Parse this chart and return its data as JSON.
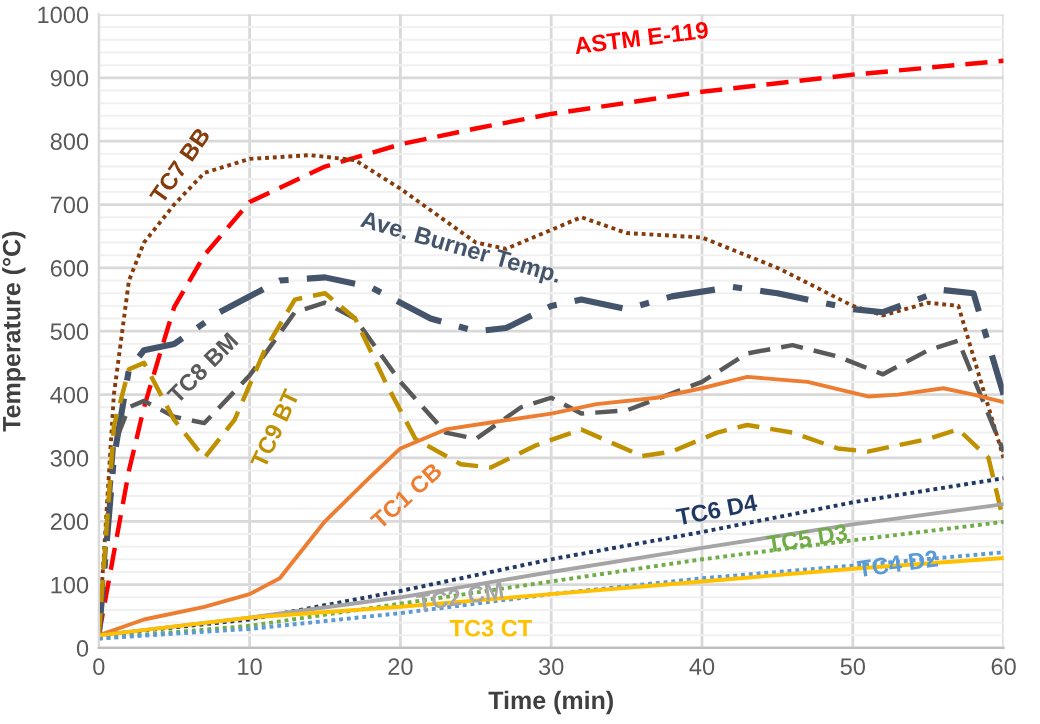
{
  "chart_data": {
    "type": "line",
    "xlabel": "Time (min)",
    "ylabel": "Temperature (°C)",
    "xlim": [
      0,
      60
    ],
    "ylim": [
      0,
      1000
    ],
    "xticks": [
      0,
      10,
      20,
      30,
      40,
      50,
      60
    ],
    "yticks": [
      0,
      100,
      200,
      300,
      400,
      500,
      600,
      700,
      800,
      900,
      1000
    ],
    "grid": true,
    "legend": false,
    "marker": "none",
    "series": [
      {
        "name": "ASTM E-119",
        "color": "#ff0000",
        "line_style": "dashed",
        "x": [
          0,
          1,
          2,
          3,
          4,
          5,
          7,
          10,
          15,
          20,
          25,
          30,
          40,
          50,
          60
        ],
        "values": [
          20,
          150,
          280,
          380,
          460,
          538,
          620,
          704,
          760,
          795,
          820,
          843,
          878,
          905,
          927
        ]
      },
      {
        "name": "TC7 BB",
        "color": "#843c0c",
        "line_style": "dotted",
        "x": [
          0,
          1,
          2,
          3,
          5,
          7,
          10,
          14,
          17,
          20,
          25,
          27,
          30,
          32,
          35,
          40,
          45,
          50,
          52,
          55,
          57,
          60
        ],
        "values": [
          20,
          400,
          580,
          640,
          700,
          750,
          772,
          778,
          770,
          725,
          640,
          630,
          660,
          680,
          655,
          648,
          600,
          540,
          525,
          545,
          540,
          300
        ]
      },
      {
        "name": "Ave. Burner Temp.",
        "color": "#44546a",
        "line_style": "dashdot",
        "x": [
          0,
          1,
          2,
          3,
          5,
          8,
          12,
          15,
          18,
          22,
          25,
          27,
          30,
          32,
          35,
          38,
          42,
          45,
          50,
          52,
          56,
          58,
          60
        ],
        "values": [
          20,
          300,
          440,
          470,
          480,
          530,
          580,
          585,
          570,
          520,
          500,
          505,
          540,
          550,
          535,
          555,
          570,
          560,
          535,
          530,
          565,
          560,
          400
        ]
      },
      {
        "name": "TC8 BM",
        "color": "#595959",
        "line_style": "dashed",
        "x": [
          0,
          1,
          2,
          3,
          5,
          7,
          10,
          13,
          15,
          17,
          20,
          23,
          25,
          28,
          30,
          32,
          35,
          40,
          43,
          46,
          49,
          52,
          55,
          57,
          60
        ],
        "values": [
          20,
          320,
          380,
          390,
          365,
          355,
          430,
          530,
          545,
          520,
          420,
          340,
          330,
          380,
          395,
          370,
          375,
          420,
          465,
          478,
          460,
          432,
          470,
          485,
          310
        ]
      },
      {
        "name": "TC9 BT",
        "color": "#bf9000",
        "line_style": "dashed",
        "x": [
          0,
          1,
          2,
          3,
          5,
          7,
          9,
          11,
          13,
          15,
          17,
          19,
          21,
          24,
          26,
          29,
          32,
          36,
          38,
          41,
          43,
          46,
          49,
          51,
          55,
          57,
          59,
          60
        ],
        "values": [
          20,
          350,
          440,
          450,
          360,
          300,
          360,
          470,
          550,
          560,
          520,
          420,
          330,
          290,
          285,
          320,
          345,
          303,
          310,
          340,
          352,
          340,
          315,
          310,
          330,
          345,
          300,
          200
        ]
      },
      {
        "name": "TC1 CB",
        "color": "#ed7d31",
        "line_style": "solid",
        "x": [
          0,
          3,
          7,
          10,
          12,
          15,
          18,
          20,
          23,
          26,
          30,
          33,
          37,
          40,
          43,
          47,
          51,
          53,
          56,
          58,
          60
        ],
        "values": [
          20,
          45,
          65,
          85,
          110,
          200,
          270,
          315,
          345,
          356,
          370,
          385,
          395,
          410,
          428,
          420,
          397,
          400,
          410,
          400,
          388
        ]
      },
      {
        "name": "TC6 D4",
        "color": "#203864",
        "line_style": "dotted",
        "x": [
          0,
          10,
          20,
          30,
          40,
          50,
          60
        ],
        "values": [
          20,
          45,
          90,
          140,
          183,
          230,
          268
        ]
      },
      {
        "name": "TC2 CM",
        "color": "#a5a5a5",
        "line_style": "solid",
        "x": [
          0,
          10,
          20,
          30,
          40,
          50,
          60
        ],
        "values": [
          20,
          48,
          80,
          120,
          158,
          195,
          227
        ]
      },
      {
        "name": "TC5 D3",
        "color": "#70ad47",
        "line_style": "dotted",
        "x": [
          0,
          10,
          20,
          30,
          40,
          50,
          60
        ],
        "values": [
          15,
          35,
          70,
          105,
          140,
          170,
          199
        ]
      },
      {
        "name": "TC4 D2",
        "color": "#5b9bd5",
        "line_style": "dotted",
        "x": [
          0,
          10,
          20,
          30,
          40,
          50,
          60
        ],
        "values": [
          15,
          30,
          55,
          85,
          110,
          130,
          151
        ]
      },
      {
        "name": "TC3 CT",
        "color": "#ffc000",
        "line_style": "solid",
        "x": [
          0,
          10,
          20,
          30,
          40,
          50,
          60
        ],
        "values": [
          20,
          48,
          65,
          85,
          105,
          125,
          142
        ]
      }
    ]
  }
}
